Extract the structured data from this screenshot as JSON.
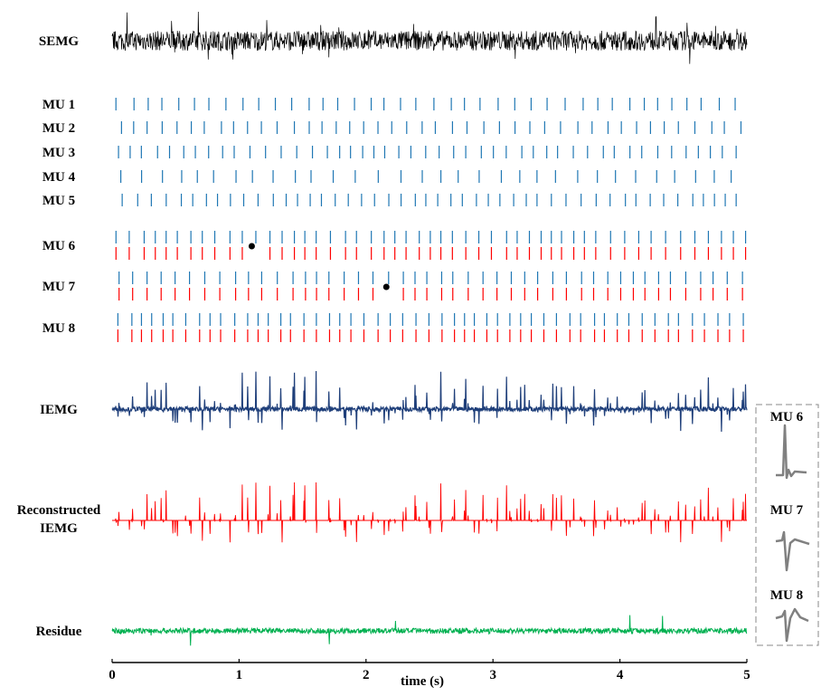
{
  "chart_data": {
    "type": "line",
    "xlabel": "time (s)",
    "xlim": [
      0,
      5
    ],
    "xticks": [
      "0",
      "1",
      "2",
      "3",
      "4",
      "5"
    ],
    "colors": {
      "semg": "#000000",
      "spikes_decomposed": "#1f77b4",
      "spikes_reference": "#ff0000",
      "iemg": "#1f3f7a",
      "reconstructed": "#ff0000",
      "residue": "#00b050",
      "template": "#808080"
    },
    "signals": [
      {
        "name": "SEMG",
        "label": "SEMG",
        "color": "#000000",
        "amplitude": "high-density noise"
      },
      {
        "name": "IEMG",
        "label": "IEMG",
        "color": "#1f3f7a"
      },
      {
        "name": "Reconstructed IEMG",
        "label_lines": [
          "Reconstructed",
          "IEMG"
        ],
        "color": "#ff0000"
      },
      {
        "name": "Residue",
        "label": "Residue",
        "color": "#00b050"
      }
    ],
    "motor_units": [
      {
        "label": "MU 1",
        "firing_rate_hz": 8.2,
        "reference": false
      },
      {
        "label": "MU 2",
        "firing_rate_hz": 8.6,
        "reference": false
      },
      {
        "label": "MU 3",
        "firing_rate_hz": 9.4,
        "reference": false
      },
      {
        "label": "MU 4",
        "firing_rate_hz": 6.6,
        "reference": false
      },
      {
        "label": "MU 5",
        "firing_rate_hz": 9.8,
        "reference": false
      },
      {
        "label": "MU 6",
        "firing_rate_hz": 10.0,
        "reference": true,
        "missed_marker_s": 1.1
      },
      {
        "label": "MU 7",
        "firing_rate_hz": 9.6,
        "reference": true,
        "missed_marker_s": 2.16
      },
      {
        "label": "MU 8",
        "firing_rate_hz": 10.6,
        "reference": true
      }
    ],
    "templates": [
      {
        "label": "MU 6"
      },
      {
        "label": "MU 7"
      },
      {
        "label": "MU 8"
      }
    ]
  }
}
